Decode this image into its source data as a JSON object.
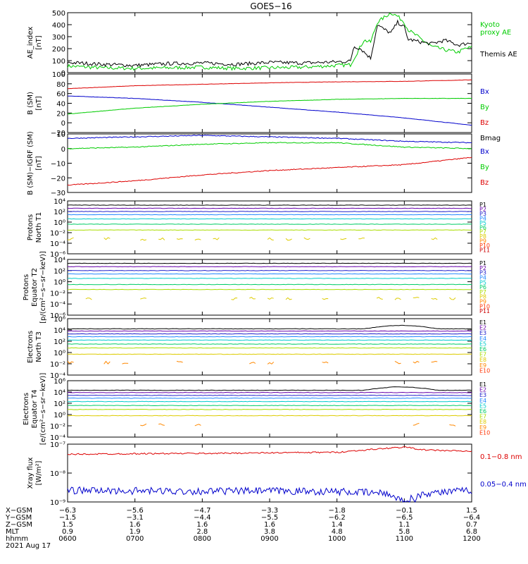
{
  "title": "GOES−16",
  "colors": {
    "black": "#000000",
    "red": "#dd0000",
    "green": "#00cc00",
    "blue": "#0000cc",
    "p": [
      "#000000",
      "#6600aa",
      "#2222cc",
      "#2288ff",
      "#00cccc",
      "#00cc66",
      "#aadd00",
      "#ddcc00",
      "#ff8800",
      "#ff3300",
      "#cc0000"
    ],
    "e": [
      "#000000",
      "#6600aa",
      "#2222cc",
      "#2288ff",
      "#00cccc",
      "#00cc66",
      "#aadd00",
      "#ddcc00",
      "#ff8800",
      "#ff3300",
      "#cc0000"
    ]
  },
  "chart_data": [
    {
      "type": "line",
      "ylabel": [
        "AE_index",
        "[nT]"
      ],
      "ylim": [
        0,
        500
      ],
      "yticks": [
        "0",
        "100",
        "200",
        "300",
        "400",
        "500"
      ],
      "legend": [
        {
          "text": "Kyoto",
          "color": "green"
        },
        {
          "text": "proxy AE",
          "color": "green"
        },
        {
          "text": "Themis AE",
          "color": "black"
        }
      ],
      "series": [
        {
          "name": "Kyoto proxy AE",
          "color": "green",
          "x": [
            0,
            0.5,
            1,
            1.5,
            2,
            2.5,
            3,
            3.5,
            4,
            4.2,
            4.4,
            4.5,
            4.6,
            4.8,
            4.9,
            5,
            5.05,
            5.2,
            5.4,
            5.6,
            5.8,
            5.9,
            6
          ],
          "y": [
            55,
            40,
            35,
            40,
            45,
            35,
            40,
            45,
            60,
            65,
            270,
            255,
            420,
            500,
            470,
            420,
            360,
            300,
            220,
            190,
            170,
            200,
            210
          ]
        },
        {
          "name": "Themis AE",
          "color": "black",
          "x": [
            0,
            0.5,
            1,
            1.5,
            2,
            2.5,
            3,
            3.5,
            4,
            4.2,
            4.25,
            4.35,
            4.5,
            4.6,
            4.7,
            4.8,
            4.9,
            5,
            5.05,
            5.2,
            5.4,
            5.6,
            5.8,
            6
          ],
          "y": [
            85,
            70,
            60,
            75,
            80,
            70,
            85,
            80,
            90,
            95,
            220,
            200,
            120,
            400,
            360,
            330,
            420,
            380,
            280,
            260,
            240,
            270,
            230,
            250
          ]
        }
      ]
    },
    {
      "type": "line",
      "ylabel": [
        "B (SM)",
        "[nT]"
      ],
      "ylim": [
        -20,
        100
      ],
      "yticks": [
        "−20",
        "0",
        "20",
        "40",
        "60",
        "80",
        "100"
      ],
      "legend": [
        {
          "text": "Bx",
          "color": "blue"
        },
        {
          "text": "By",
          "color": "green"
        },
        {
          "text": "Bz",
          "color": "red"
        },
        {
          "text": "Bmag",
          "color": "black"
        }
      ],
      "series": [
        {
          "name": "Bx",
          "color": "blue",
          "x": [
            0,
            1,
            2,
            3,
            4,
            5,
            6
          ],
          "y": [
            55,
            50,
            42,
            32,
            22,
            10,
            -5
          ]
        },
        {
          "name": "By",
          "color": "green",
          "x": [
            0,
            1,
            2,
            3,
            4,
            5,
            6
          ],
          "y": [
            18,
            30,
            38,
            44,
            48,
            50,
            50
          ]
        },
        {
          "name": "Bz",
          "color": "red",
          "x": [
            0,
            1,
            2,
            3,
            4,
            5,
            6
          ],
          "y": [
            70,
            76,
            79,
            82,
            84,
            85,
            88
          ]
        }
      ]
    },
    {
      "type": "line",
      "ylabel": [
        "B (SM)−IGRF (SM)",
        "[nT]"
      ],
      "ylim": [
        -30,
        10
      ],
      "yticks": [
        "−30",
        "−20",
        "−10",
        "0",
        "10"
      ],
      "legend": [
        {
          "text": "Bx",
          "color": "blue"
        },
        {
          "text": "By",
          "color": "green"
        },
        {
          "text": "Bz",
          "color": "red"
        }
      ],
      "series": [
        {
          "name": "Bx",
          "color": "blue",
          "x": [
            0,
            1,
            2,
            3,
            4,
            5,
            6
          ],
          "y": [
            7,
            8,
            9,
            8,
            7,
            5,
            4
          ]
        },
        {
          "name": "By",
          "color": "green",
          "x": [
            0,
            1,
            2,
            3,
            4,
            5,
            6
          ],
          "y": [
            0,
            1,
            3,
            4,
            4,
            1,
            0
          ]
        },
        {
          "name": "Bz",
          "color": "red",
          "x": [
            0,
            1,
            2,
            3,
            4,
            5,
            6
          ],
          "y": [
            -25,
            -22,
            -18,
            -15,
            -13,
            -11,
            -6
          ]
        }
      ]
    },
    {
      "type": "line",
      "ylabel": [
        "Protons",
        "North T1"
      ],
      "log": true,
      "ylim_exp": [
        -6,
        4
      ],
      "yticks": [
        "10⁻⁶",
        "10⁻⁴",
        "10⁻²",
        "10⁰",
        "10²",
        "10⁴"
      ],
      "legend": [
        "P1",
        "P2",
        "P3",
        "P4",
        "P5",
        "P6",
        "P7",
        "P8",
        "P9",
        "P10",
        "P11"
      ],
      "levels_exp": [
        3.2,
        2.6,
        2.0,
        1.4,
        0.6,
        -0.4,
        -1.5,
        -3.2,
        null,
        null,
        null
      ]
    },
    {
      "type": "line",
      "ylabel": [
        "Protons",
        "Equator T2",
        "[p/(cm²−s−sr−keV)]"
      ],
      "log": true,
      "ylim_exp": [
        -6,
        4
      ],
      "yticks": [
        "10⁻⁶",
        "10⁻⁴",
        "10⁻²",
        "10⁰",
        "10²",
        "10⁴"
      ],
      "legend": [
        "P1",
        "P2",
        "P3",
        "P4",
        "P5",
        "P6",
        "P7",
        "P8",
        "P9",
        "P10",
        "P11"
      ],
      "levels_exp": [
        3.3,
        2.7,
        2.0,
        1.4,
        0.6,
        -0.5,
        -1.4,
        -3.0,
        null,
        null,
        null
      ]
    },
    {
      "type": "line",
      "ylabel": [
        "Electrons",
        "North T3"
      ],
      "log": true,
      "ylim_exp": [
        -4,
        6
      ],
      "yticks": [
        "10⁻⁴",
        "10⁻²",
        "10⁰",
        "10²",
        "10⁴",
        "10⁶"
      ],
      "legend": [
        "E1",
        "E2",
        "E3",
        "E4",
        "E5",
        "E6",
        "E7",
        "E8",
        "E9",
        "E10"
      ],
      "levels_exp": [
        4.2,
        3.8,
        3.3,
        2.8,
        2.2,
        1.5,
        0.8,
        -0.3,
        -1.8,
        null
      ]
    },
    {
      "type": "line",
      "ylabel": [
        "Electrons",
        "Equator T4",
        "[e/(cm²−s−sr−keV)]"
      ],
      "log": true,
      "ylim_exp": [
        -4,
        6
      ],
      "yticks": [
        "10⁻⁴",
        "10⁻²",
        "10⁰",
        "10²",
        "10⁴",
        "10⁶"
      ],
      "legend": [
        "E1",
        "E2",
        "E3",
        "E4",
        "E5",
        "E6",
        "E7",
        "E8",
        "E9",
        "E10"
      ],
      "levels_exp": [
        4.3,
        3.9,
        3.4,
        2.9,
        2.3,
        1.6,
        0.9,
        -0.2,
        -1.8,
        null
      ]
    },
    {
      "type": "line",
      "ylabel": [
        "Xray flux",
        "[W/m²]"
      ],
      "log": true,
      "ylim_exp": [
        -9,
        -7
      ],
      "yticks": [
        "10⁻⁹",
        "10⁻⁸",
        "10⁻⁷"
      ],
      "legend": [
        {
          "text": "0.1−0.8 nm",
          "color": "red"
        },
        {
          "text": "0.05−0.4 nm",
          "color": "blue"
        }
      ],
      "series": [
        {
          "name": "0.1−0.8 nm",
          "color": "red",
          "x": [
            0,
            1,
            2,
            3,
            4,
            4.7,
            5,
            5.3,
            6
          ],
          "y_exp": [
            -7.35,
            -7.33,
            -7.32,
            -7.3,
            -7.28,
            -7.15,
            -7.1,
            -7.2,
            -7.25
          ]
        },
        {
          "name": "0.05−0.4 nm",
          "color": "blue",
          "x": [
            0,
            1,
            2,
            3,
            4,
            4.7,
            5,
            5.3,
            6
          ],
          "y_exp": [
            -8.6,
            -8.62,
            -8.63,
            -8.62,
            -8.64,
            -8.7,
            -8.9,
            -8.7,
            -8.6
          ]
        }
      ]
    }
  ],
  "xaxis": {
    "rows": [
      {
        "label": "X−GSM",
        "values": [
          "−6.3",
          "−5.6",
          "−4.7",
          "−3.3",
          "−1.8",
          "−0.1",
          "1.5"
        ]
      },
      {
        "label": "Y−GSM",
        "values": [
          "−1.5",
          "−3.1",
          "−4.4",
          "−5.5",
          "−6.2",
          "−6.5",
          "−6.4"
        ]
      },
      {
        "label": "Z−GSM",
        "values": [
          "1.5",
          "1.6",
          "1.6",
          "1.6",
          "1.4",
          "1.1",
          "0.7"
        ]
      },
      {
        "label": "MLT",
        "values": [
          "0.9",
          "1.9",
          "2.8",
          "3.8",
          "4.8",
          "5.8",
          "6.8"
        ]
      },
      {
        "label": "hhmm",
        "values": [
          "0600",
          "0700",
          "0800",
          "0900",
          "1000",
          "1100",
          "1200"
        ]
      }
    ],
    "date": "2021 Aug 17"
  }
}
